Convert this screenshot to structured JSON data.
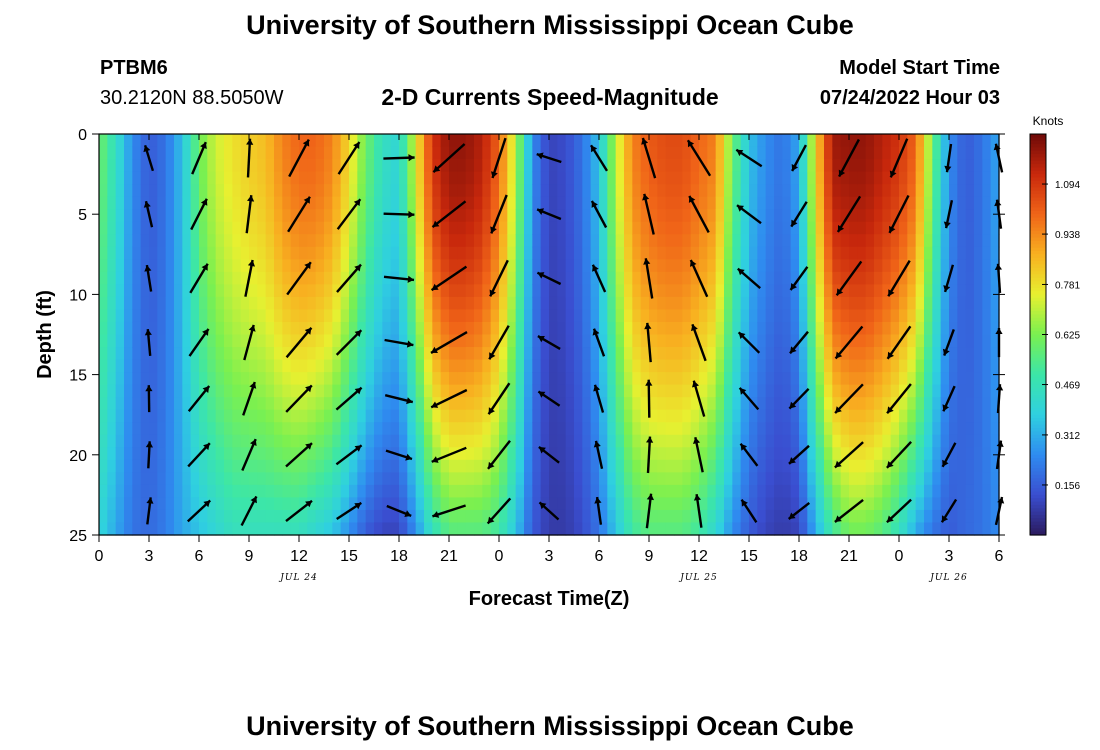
{
  "header": {
    "title": "University of Southern Mississippi Ocean Cube",
    "station_id": "PTBM6",
    "station_coords": "30.2120N  88.5050W",
    "plot_title": "2-D Currents Speed-Magnitude",
    "model_label": "Model Start Time",
    "model_start": "07/24/2022 Hour 03",
    "footer_title": "University of Southern Mississippi Ocean Cube"
  },
  "chart_data": {
    "type": "heatmap",
    "title": "2-D Currents Speed-Magnitude",
    "xlabel": "Forecast Time(Z)",
    "ylabel": "Depth (ft)",
    "x_tick_labels": [
      "0",
      "3",
      "6",
      "9",
      "12",
      "15",
      "18",
      "21",
      "0",
      "3",
      "6",
      "9",
      "12",
      "15",
      "18",
      "21",
      "0",
      "3",
      "6"
    ],
    "x_range_hours": [
      0,
      54
    ],
    "date_labels": [
      {
        "text": "JUL 24",
        "hour": 12
      },
      {
        "text": "JUL 25",
        "hour": 36
      },
      {
        "text": "JUL 26",
        "hour": 51
      }
    ],
    "y_tick_labels": [
      "0",
      "5",
      "10",
      "15",
      "20",
      "25"
    ],
    "y_range": [
      0,
      25
    ],
    "y_inverted": true,
    "colorbar": {
      "label": "Knots",
      "tick_labels": [
        "1.094",
        "0.938",
        "0.781",
        "0.625",
        "0.469",
        "0.312",
        "0.156"
      ],
      "range": [
        0,
        1.25
      ],
      "colors": [
        "#2b1a5e",
        "#3a4ed0",
        "#2f8cf0",
        "#2fd0e0",
        "#3ce6a8",
        "#7af050",
        "#e8f030",
        "#f8b020",
        "#f06418",
        "#c8280c",
        "#6e0a08"
      ]
    },
    "speed_profile": {
      "hours": [
        0,
        1,
        2,
        3,
        4,
        5,
        6,
        7,
        8,
        9,
        10,
        11,
        12,
        13,
        14,
        15,
        16,
        17,
        18,
        19,
        20,
        21,
        22,
        23,
        24,
        25,
        26,
        27,
        28,
        29,
        30,
        31,
        32,
        33,
        34,
        35,
        36,
        37,
        38,
        39,
        40,
        41,
        42,
        43,
        44,
        45,
        46,
        47,
        48,
        49,
        50,
        51,
        52,
        53,
        54
      ],
      "surface": [
        0.6,
        0.45,
        0.25,
        0.15,
        0.2,
        0.35,
        0.6,
        0.72,
        0.78,
        0.82,
        0.85,
        0.95,
        1.0,
        1.0,
        0.95,
        0.8,
        0.6,
        0.45,
        0.4,
        0.75,
        1.1,
        1.2,
        1.2,
        1.15,
        1.0,
        0.7,
        0.25,
        0.1,
        0.12,
        0.2,
        0.35,
        0.7,
        0.95,
        1.02,
        1.05,
        1.05,
        1.0,
        0.95,
        0.6,
        0.35,
        0.25,
        0.2,
        0.3,
        0.8,
        1.18,
        1.2,
        1.2,
        1.15,
        1.1,
        1.0,
        0.6,
        0.25,
        0.15,
        0.2,
        0.3
      ],
      "bottom": [
        0.4,
        0.3,
        0.2,
        0.18,
        0.22,
        0.3,
        0.35,
        0.4,
        0.45,
        0.45,
        0.45,
        0.45,
        0.45,
        0.4,
        0.35,
        0.25,
        0.15,
        0.1,
        0.1,
        0.25,
        0.45,
        0.55,
        0.55,
        0.55,
        0.5,
        0.35,
        0.15,
        0.08,
        0.08,
        0.12,
        0.2,
        0.35,
        0.5,
        0.55,
        0.55,
        0.55,
        0.5,
        0.4,
        0.25,
        0.15,
        0.1,
        0.08,
        0.1,
        0.3,
        0.5,
        0.6,
        0.6,
        0.55,
        0.45,
        0.3,
        0.2,
        0.15,
        0.18,
        0.2,
        0.25
      ]
    },
    "direction_deg": [
      -10,
      -5,
      -5,
      -5,
      0,
      20,
      35,
      25,
      20,
      15,
      15,
      30,
      40,
      45,
      45,
      45,
      40,
      70,
      100,
      80,
      -130,
      -120,
      -130,
      -140,
      -150,
      -150,
      -140,
      -60,
      -40,
      -30,
      -20,
      -10,
      -5,
      -5,
      0,
      -10,
      -20,
      -15,
      -20,
      -45,
      -60,
      -100,
      -140,
      -150,
      -150,
      -140,
      -135,
      -140,
      -145,
      -150,
      -170,
      -160,
      -30,
      -10,
      0
    ],
    "grid": false,
    "legend": "right"
  }
}
